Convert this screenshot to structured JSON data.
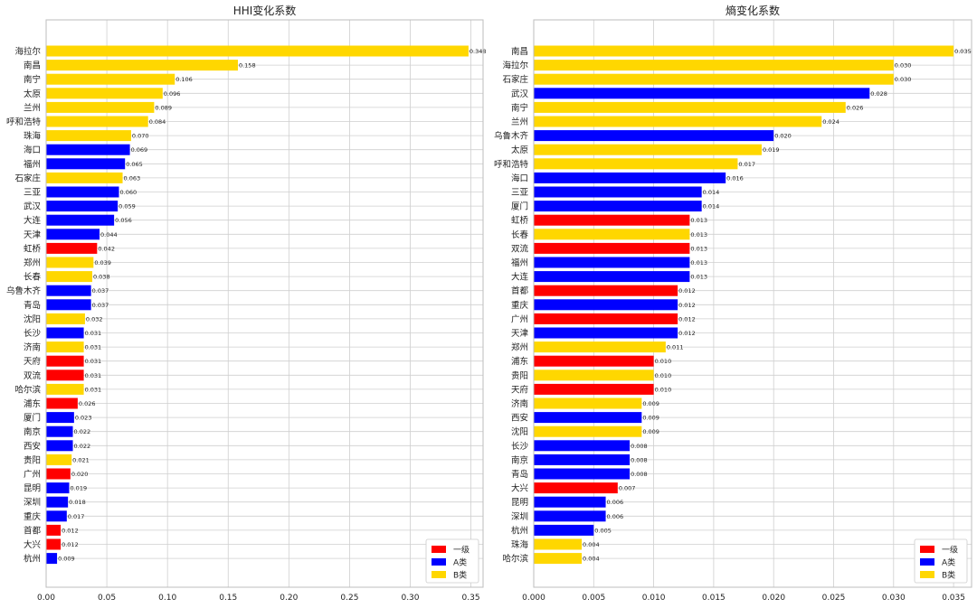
{
  "colors": {
    "一级": "#ff0000",
    "A类": "#0000ff",
    "B类": "#ffd700"
  },
  "legend": [
    "一级",
    "A类",
    "B类"
  ],
  "chart_data": [
    {
      "type": "bar",
      "orientation": "horizontal",
      "title": "HHI变化系数",
      "xlim": [
        0,
        0.36
      ],
      "xticks": [
        0.0,
        0.05,
        0.1,
        0.15,
        0.2,
        0.25,
        0.3,
        0.35
      ],
      "xtick_labels": [
        "0.00",
        "0.05",
        "0.10",
        "0.15",
        "0.20",
        "0.25",
        "0.30",
        "0.35"
      ],
      "value_decimals": 3,
      "grid": true,
      "legend_position": "lower-right",
      "categories": [
        "海拉尔",
        "南昌",
        "南宁",
        "太原",
        "兰州",
        "呼和浩特",
        "珠海",
        "海口",
        "福州",
        "石家庄",
        "三亚",
        "武汉",
        "大连",
        "天津",
        "虹桥",
        "郑州",
        "长春",
        "乌鲁木齐",
        "青岛",
        "沈阳",
        "长沙",
        "济南",
        "天府",
        "双流",
        "哈尔滨",
        "浦东",
        "厦门",
        "南京",
        "西安",
        "贵阳",
        "广州",
        "昆明",
        "深圳",
        "重庆",
        "首都",
        "大兴",
        "杭州"
      ],
      "values": [
        0.348,
        0.158,
        0.106,
        0.096,
        0.089,
        0.084,
        0.07,
        0.069,
        0.065,
        0.063,
        0.06,
        0.059,
        0.056,
        0.044,
        0.042,
        0.039,
        0.038,
        0.037,
        0.037,
        0.032,
        0.031,
        0.031,
        0.031,
        0.031,
        0.031,
        0.026,
        0.023,
        0.022,
        0.022,
        0.021,
        0.02,
        0.019,
        0.018,
        0.017,
        0.012,
        0.012,
        0.009
      ],
      "groups": [
        "B类",
        "B类",
        "B类",
        "B类",
        "B类",
        "B类",
        "B类",
        "A类",
        "A类",
        "B类",
        "A类",
        "A类",
        "A类",
        "A类",
        "一级",
        "B类",
        "B类",
        "A类",
        "A类",
        "B类",
        "A类",
        "B类",
        "一级",
        "一级",
        "B类",
        "一级",
        "A类",
        "A类",
        "A类",
        "B类",
        "一级",
        "A类",
        "A类",
        "A类",
        "一级",
        "一级",
        "A类"
      ]
    },
    {
      "type": "bar",
      "orientation": "horizontal",
      "title": "熵变化系数",
      "xlim": [
        0,
        0.0365
      ],
      "xticks": [
        0.0,
        0.005,
        0.01,
        0.015,
        0.02,
        0.025,
        0.03,
        0.035
      ],
      "xtick_labels": [
        "0.000",
        "0.005",
        "0.010",
        "0.015",
        "0.020",
        "0.025",
        "0.030",
        "0.035"
      ],
      "value_decimals": 3,
      "grid": true,
      "legend_position": "lower-right",
      "categories": [
        "南昌",
        "海拉尔",
        "石家庄",
        "武汉",
        "南宁",
        "兰州",
        "乌鲁木齐",
        "太原",
        "呼和浩特",
        "海口",
        "三亚",
        "厦门",
        "虹桥",
        "长春",
        "双流",
        "福州",
        "大连",
        "首都",
        "重庆",
        "广州",
        "天津",
        "郑州",
        "浦东",
        "贵阳",
        "天府",
        "济南",
        "西安",
        "沈阳",
        "长沙",
        "南京",
        "青岛",
        "大兴",
        "昆明",
        "深圳",
        "杭州",
        "珠海",
        "哈尔滨"
      ],
      "values": [
        0.035,
        0.03,
        0.03,
        0.028,
        0.026,
        0.024,
        0.02,
        0.019,
        0.017,
        0.016,
        0.014,
        0.014,
        0.013,
        0.013,
        0.013,
        0.013,
        0.013,
        0.012,
        0.012,
        0.012,
        0.012,
        0.011,
        0.01,
        0.01,
        0.01,
        0.009,
        0.009,
        0.009,
        0.008,
        0.008,
        0.008,
        0.007,
        0.006,
        0.006,
        0.005,
        0.004,
        0.004
      ],
      "groups": [
        "B类",
        "B类",
        "B类",
        "A类",
        "B类",
        "B类",
        "A类",
        "B类",
        "B类",
        "A类",
        "A类",
        "A类",
        "一级",
        "B类",
        "一级",
        "A类",
        "A类",
        "一级",
        "A类",
        "一级",
        "A类",
        "B类",
        "一级",
        "B类",
        "一级",
        "B类",
        "A类",
        "B类",
        "A类",
        "A类",
        "A类",
        "一级",
        "A类",
        "A类",
        "A类",
        "B类",
        "B类"
      ]
    }
  ]
}
